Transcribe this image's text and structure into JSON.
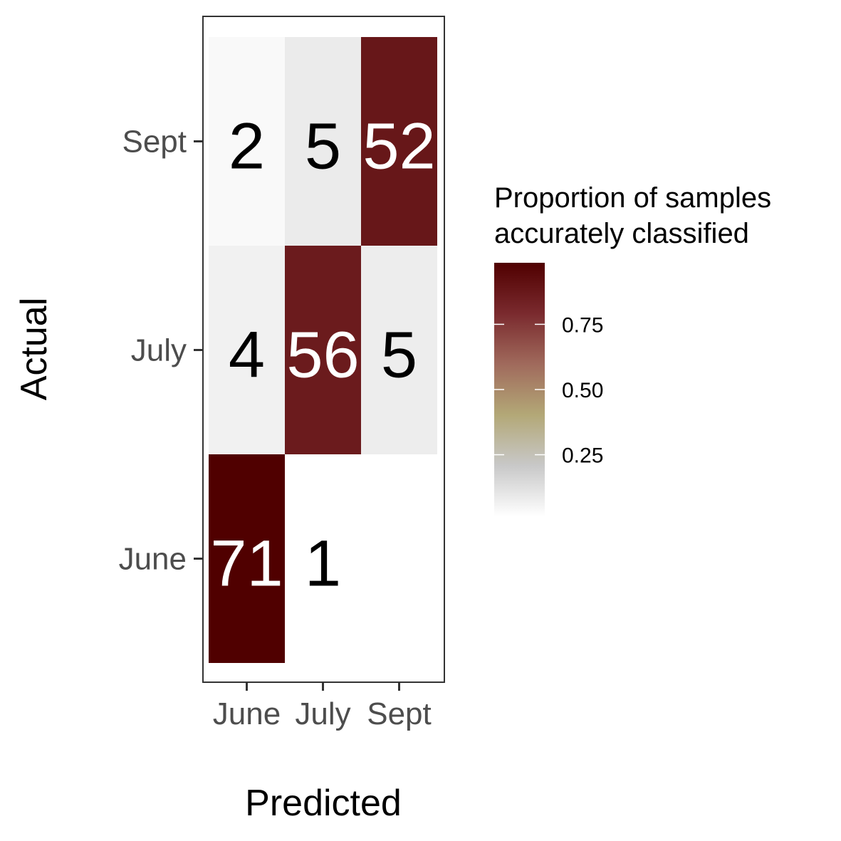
{
  "chart_data": {
    "type": "heatmap",
    "title": "",
    "xlabel": "Predicted",
    "ylabel": "Actual",
    "x_categories": [
      "June",
      "July",
      "Sept"
    ],
    "y_categories": [
      "June",
      "July",
      "Sept"
    ],
    "cells": [
      {
        "actual": "June",
        "predicted": "June",
        "count": 71,
        "proportion": 0.986
      },
      {
        "actual": "June",
        "predicted": "July",
        "count": 1,
        "proportion": 0.014
      },
      {
        "actual": "June",
        "predicted": "Sept",
        "count": null,
        "proportion": null
      },
      {
        "actual": "July",
        "predicted": "June",
        "count": 4,
        "proportion": 0.062
      },
      {
        "actual": "July",
        "predicted": "July",
        "count": 56,
        "proportion": 0.862
      },
      {
        "actual": "July",
        "predicted": "Sept",
        "count": 5,
        "proportion": 0.077
      },
      {
        "actual": "Sept",
        "predicted": "June",
        "count": 2,
        "proportion": 0.034
      },
      {
        "actual": "Sept",
        "predicted": "July",
        "count": 5,
        "proportion": 0.085
      },
      {
        "actual": "Sept",
        "predicted": "Sept",
        "count": 52,
        "proportion": 0.881
      }
    ],
    "legend": {
      "title_lines": [
        "Proportion of samples",
        "accurately classified"
      ],
      "ticks": [
        0.25,
        0.5,
        0.75
      ],
      "tick_labels": [
        "0.25",
        "0.50",
        "0.75"
      ],
      "range": [
        0.014,
        0.986
      ],
      "placement": "right",
      "colors": [
        "#ffffff",
        "#c8c8c8",
        "#b3a877",
        "#a06a5c",
        "#7a2a2e",
        "#500000"
      ]
    },
    "grid": false
  }
}
